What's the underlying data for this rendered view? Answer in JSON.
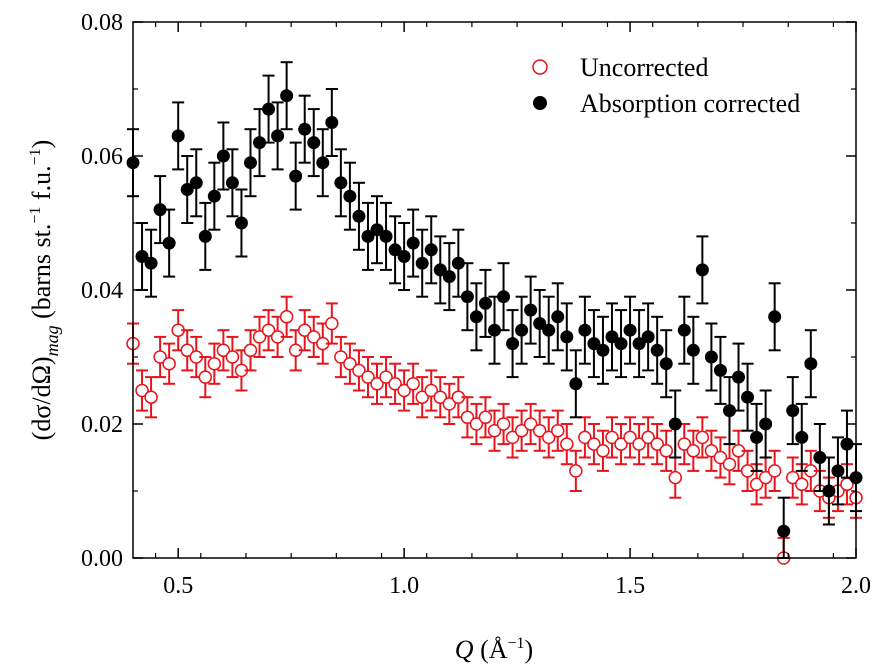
{
  "chart_data": {
    "type": "scatter",
    "title": "",
    "xlabel": {
      "q": "Q",
      "open": " (Å",
      "sup": "−1",
      "close": ")"
    },
    "ylabel": {
      "main": "(dσ/dΩ)",
      "sub": "mag",
      "units": " (barns st.",
      "sup1": "−1",
      "fu": " f.u.",
      "sup2": "−1",
      "close": ")"
    },
    "xlim": [
      0.4,
      2.0
    ],
    "ylim": [
      0.0,
      0.08
    ],
    "xticks": [
      0.5,
      1.0,
      1.5,
      2.0
    ],
    "xtick_labels": [
      "0.5",
      "1.0",
      "1.5",
      "2.0"
    ],
    "yticks": [
      0.0,
      0.02,
      0.04,
      0.06,
      0.08
    ],
    "ytick_labels": [
      "0.00",
      "0.02",
      "0.04",
      "0.06",
      "0.08"
    ],
    "legend_position": "top-right",
    "series": [
      {
        "name": "Uncorrected",
        "color": "#e8141b",
        "marker": "open-circle",
        "x": [
          0.4,
          0.42,
          0.44,
          0.46,
          0.48,
          0.5,
          0.52,
          0.54,
          0.56,
          0.58,
          0.6,
          0.62,
          0.64,
          0.66,
          0.68,
          0.7,
          0.72,
          0.74,
          0.76,
          0.78,
          0.8,
          0.82,
          0.84,
          0.86,
          0.88,
          0.9,
          0.92,
          0.94,
          0.96,
          0.98,
          1.0,
          1.02,
          1.04,
          1.06,
          1.08,
          1.1,
          1.12,
          1.14,
          1.16,
          1.18,
          1.2,
          1.22,
          1.24,
          1.26,
          1.28,
          1.3,
          1.32,
          1.34,
          1.36,
          1.38,
          1.4,
          1.42,
          1.44,
          1.46,
          1.48,
          1.5,
          1.52,
          1.54,
          1.56,
          1.58,
          1.6,
          1.62,
          1.64,
          1.66,
          1.68,
          1.7,
          1.72,
          1.74,
          1.76,
          1.78,
          1.8,
          1.82,
          1.84,
          1.86,
          1.88,
          1.9,
          1.92,
          1.94,
          1.96,
          1.98,
          2.0
        ],
        "y": [
          0.032,
          0.025,
          0.024,
          0.03,
          0.029,
          0.034,
          0.031,
          0.03,
          0.027,
          0.029,
          0.031,
          0.03,
          0.028,
          0.031,
          0.033,
          0.034,
          0.033,
          0.036,
          0.031,
          0.034,
          0.033,
          0.032,
          0.035,
          0.03,
          0.029,
          0.028,
          0.027,
          0.026,
          0.027,
          0.026,
          0.025,
          0.026,
          0.024,
          0.025,
          0.024,
          0.023,
          0.024,
          0.021,
          0.02,
          0.021,
          0.019,
          0.02,
          0.018,
          0.019,
          0.02,
          0.019,
          0.018,
          0.019,
          0.017,
          0.013,
          0.018,
          0.017,
          0.016,
          0.018,
          0.017,
          0.018,
          0.017,
          0.018,
          0.017,
          0.016,
          0.012,
          0.017,
          0.016,
          0.018,
          0.016,
          0.015,
          0.014,
          0.016,
          0.013,
          0.011,
          0.012,
          0.013,
          0.0,
          0.012,
          0.011,
          0.013,
          0.01,
          0.009,
          0.01,
          0.011,
          0.009
        ],
        "err": [
          0.003,
          0.003,
          0.003,
          0.003,
          0.003,
          0.003,
          0.003,
          0.003,
          0.003,
          0.003,
          0.003,
          0.003,
          0.003,
          0.003,
          0.003,
          0.003,
          0.003,
          0.003,
          0.003,
          0.003,
          0.003,
          0.003,
          0.003,
          0.003,
          0.003,
          0.003,
          0.003,
          0.003,
          0.003,
          0.003,
          0.003,
          0.003,
          0.003,
          0.003,
          0.003,
          0.003,
          0.003,
          0.003,
          0.003,
          0.003,
          0.003,
          0.003,
          0.003,
          0.003,
          0.003,
          0.003,
          0.003,
          0.003,
          0.003,
          0.003,
          0.003,
          0.003,
          0.003,
          0.003,
          0.003,
          0.003,
          0.003,
          0.003,
          0.003,
          0.003,
          0.003,
          0.003,
          0.003,
          0.003,
          0.003,
          0.003,
          0.003,
          0.003,
          0.003,
          0.003,
          0.003,
          0.003,
          0.003,
          0.003,
          0.003,
          0.003,
          0.003,
          0.003,
          0.003,
          0.003,
          0.003
        ]
      },
      {
        "name": "Absorption corrected",
        "color": "#000000",
        "marker": "filled-circle",
        "x": [
          0.4,
          0.42,
          0.44,
          0.46,
          0.48,
          0.5,
          0.52,
          0.54,
          0.56,
          0.58,
          0.6,
          0.62,
          0.64,
          0.66,
          0.68,
          0.7,
          0.72,
          0.74,
          0.76,
          0.78,
          0.8,
          0.82,
          0.84,
          0.86,
          0.88,
          0.9,
          0.92,
          0.94,
          0.96,
          0.98,
          1.0,
          1.02,
          1.04,
          1.06,
          1.08,
          1.1,
          1.12,
          1.14,
          1.16,
          1.18,
          1.2,
          1.22,
          1.24,
          1.26,
          1.28,
          1.3,
          1.32,
          1.34,
          1.36,
          1.38,
          1.4,
          1.42,
          1.44,
          1.46,
          1.48,
          1.5,
          1.52,
          1.54,
          1.56,
          1.58,
          1.6,
          1.62,
          1.64,
          1.66,
          1.68,
          1.7,
          1.72,
          1.74,
          1.76,
          1.78,
          1.8,
          1.82,
          1.84,
          1.86,
          1.88,
          1.9,
          1.92,
          1.94,
          1.96,
          1.98,
          2.0
        ],
        "y": [
          0.059,
          0.045,
          0.044,
          0.052,
          0.047,
          0.063,
          0.055,
          0.056,
          0.048,
          0.054,
          0.06,
          0.056,
          0.05,
          0.059,
          0.062,
          0.067,
          0.063,
          0.069,
          0.057,
          0.064,
          0.062,
          0.059,
          0.065,
          0.056,
          0.054,
          0.051,
          0.048,
          0.049,
          0.048,
          0.046,
          0.045,
          0.047,
          0.044,
          0.046,
          0.043,
          0.042,
          0.044,
          0.039,
          0.036,
          0.038,
          0.034,
          0.039,
          0.032,
          0.034,
          0.037,
          0.035,
          0.034,
          0.036,
          0.033,
          0.026,
          0.034,
          0.032,
          0.031,
          0.033,
          0.032,
          0.034,
          0.032,
          0.033,
          0.031,
          0.029,
          0.02,
          0.034,
          0.031,
          0.043,
          0.03,
          0.028,
          0.022,
          0.027,
          0.024,
          0.018,
          0.02,
          0.036,
          0.004,
          0.022,
          0.018,
          0.029,
          0.015,
          0.01,
          0.013,
          0.017,
          0.012
        ],
        "err": [
          0.005,
          0.005,
          0.005,
          0.005,
          0.005,
          0.005,
          0.005,
          0.005,
          0.005,
          0.005,
          0.005,
          0.005,
          0.005,
          0.005,
          0.005,
          0.005,
          0.005,
          0.005,
          0.005,
          0.005,
          0.005,
          0.005,
          0.005,
          0.005,
          0.005,
          0.005,
          0.005,
          0.005,
          0.005,
          0.005,
          0.005,
          0.005,
          0.005,
          0.005,
          0.005,
          0.005,
          0.005,
          0.005,
          0.005,
          0.005,
          0.005,
          0.005,
          0.005,
          0.005,
          0.005,
          0.005,
          0.005,
          0.005,
          0.005,
          0.005,
          0.005,
          0.005,
          0.005,
          0.005,
          0.005,
          0.005,
          0.005,
          0.005,
          0.005,
          0.005,
          0.005,
          0.005,
          0.005,
          0.005,
          0.005,
          0.005,
          0.005,
          0.005,
          0.005,
          0.005,
          0.005,
          0.005,
          0.005,
          0.005,
          0.005,
          0.005,
          0.005,
          0.005,
          0.005,
          0.005,
          0.005
        ]
      }
    ]
  }
}
